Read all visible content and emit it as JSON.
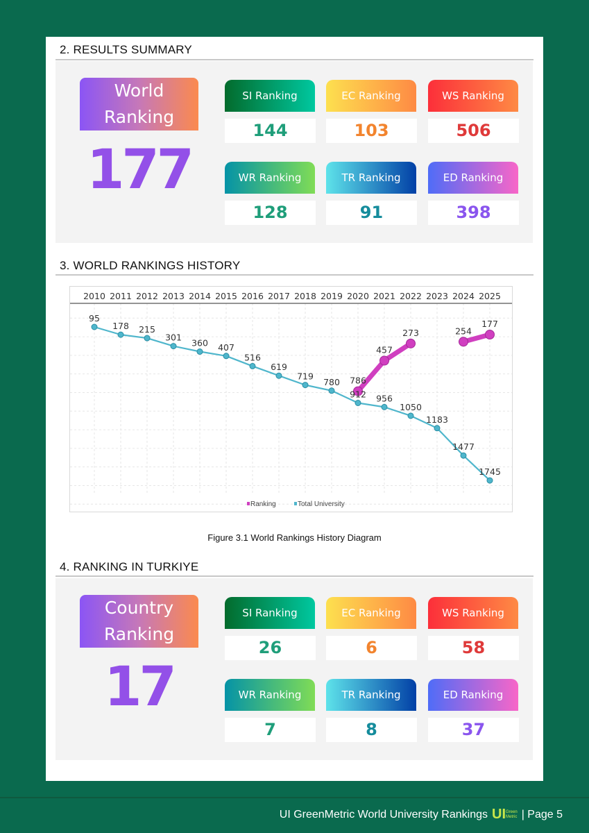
{
  "sections": {
    "results": {
      "title": "2. RESULTS SUMMARY",
      "badge_line1": "World",
      "badge_line2": "Ranking",
      "value": "177",
      "cards": [
        {
          "label": "SI Ranking",
          "value": "144"
        },
        {
          "label": "EC Ranking",
          "value": "103"
        },
        {
          "label": "WS Ranking",
          "value": "506"
        },
        {
          "label": "WR Ranking",
          "value": "128"
        },
        {
          "label": "TR Ranking",
          "value": "91"
        },
        {
          "label": "ED Ranking",
          "value": "398"
        }
      ]
    },
    "history": {
      "title": "3. WORLD RANKINGS HISTORY",
      "caption": "Figure 3.1 World Rankings History Diagram"
    },
    "country": {
      "title": "4. RANKING IN TURKIYE",
      "badge_line1": "Country",
      "badge_line2": "Ranking",
      "value": "17",
      "cards": [
        {
          "label": "SI Ranking",
          "value": "26"
        },
        {
          "label": "EC Ranking",
          "value": "6"
        },
        {
          "label": "WS Ranking",
          "value": "58"
        },
        {
          "label": "WR Ranking",
          "value": "7"
        },
        {
          "label": "TR Ranking",
          "value": "8"
        },
        {
          "label": "ED Ranking",
          "value": "37"
        }
      ]
    }
  },
  "card_styles": [
    {
      "gradient": [
        "#036b2c",
        "#00c8a0"
      ],
      "value_color": "#1f9e7a"
    },
    {
      "gradient": [
        "#fde04f",
        "#fe8a44"
      ],
      "value_color": "#f2842e"
    },
    {
      "gradient": [
        "#fc2f3a",
        "#fe8a44"
      ],
      "value_color": "#df3a3a"
    },
    {
      "gradient": [
        "#0593a6",
        "#80dc56"
      ],
      "value_color": "#1f9e7a"
    },
    {
      "gradient": [
        "#5ee3ea",
        "#0240a6"
      ],
      "value_color": "#158c9c"
    },
    {
      "gradient": [
        "#4f6cf7",
        "#f866c8"
      ],
      "value_color": "#8a55ee"
    }
  ],
  "chart_data": {
    "type": "line",
    "x": [
      2010,
      2011,
      2012,
      2013,
      2014,
      2015,
      2016,
      2017,
      2018,
      2019,
      2020,
      2021,
      2022,
      2023,
      2024,
      2025
    ],
    "series": [
      {
        "name": "Ranking",
        "color": "#d03fc0",
        "values": [
          null,
          null,
          null,
          null,
          null,
          null,
          null,
          null,
          null,
          null,
          786,
          457,
          273,
          null,
          254,
          177
        ]
      },
      {
        "name": "Total University",
        "color": "#4fb6cc",
        "values": [
          95,
          178,
          215,
          301,
          360,
          407,
          516,
          619,
          719,
          780,
          912,
          956,
          1050,
          1183,
          1477,
          1745
        ]
      }
    ],
    "ylim": [
      2000,
      0
    ],
    "y_reversed": true,
    "x_axis_position": "top",
    "grid": true,
    "legend": "bottom-center"
  },
  "footer": {
    "text": "UI GreenMetric World University Rankings",
    "logo_text": "UI",
    "logo_sub1": "Green",
    "logo_sub2": "Metric",
    "page": "| Page 5"
  }
}
